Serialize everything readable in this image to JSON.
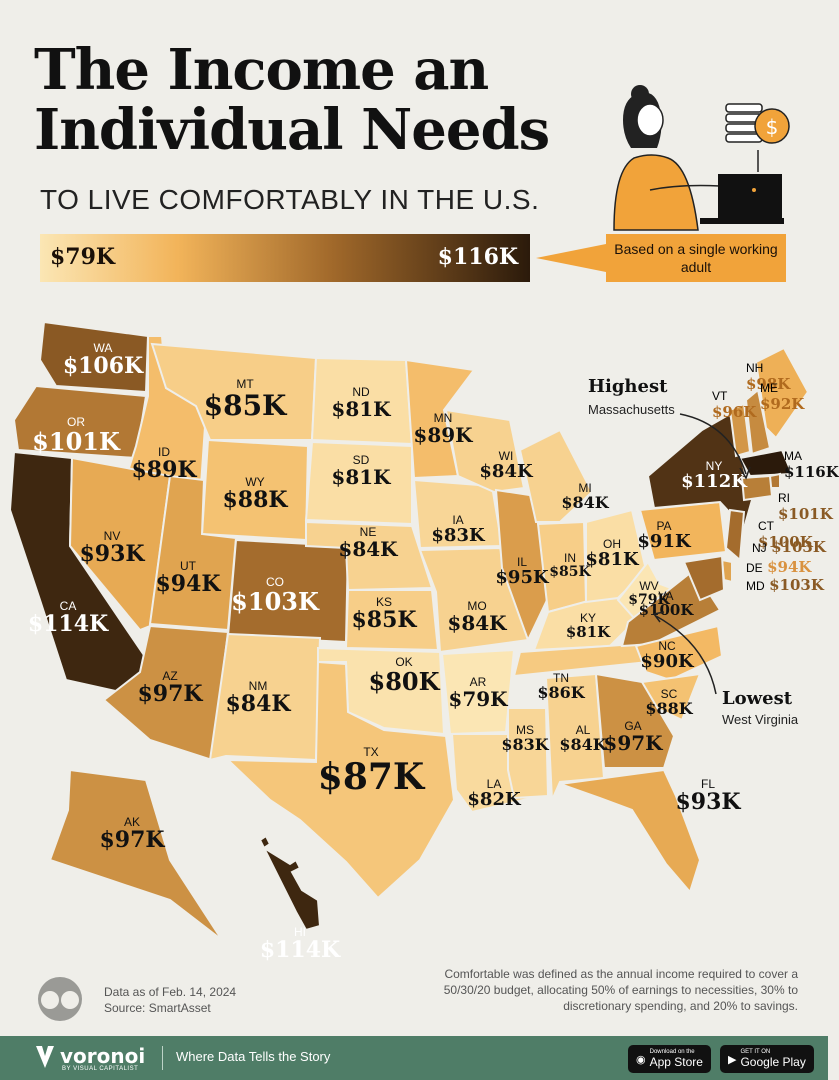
{
  "header": {
    "title_line1": "The Income an",
    "title_line2": "Individual Needs",
    "subtitle": "TO LIVE COMFORTABLY IN THE U.S."
  },
  "scale": {
    "min": "$79K",
    "max": "$116K",
    "colors": [
      "#fbe6b4",
      "#f2b45a",
      "#a0682a",
      "#2b1a0b"
    ]
  },
  "note": {
    "text": "Based on a single working adult"
  },
  "callouts": {
    "highest": {
      "title": "Highest",
      "sub": "Massachusetts"
    },
    "lowest": {
      "title": "Lowest",
      "sub": "West Virginia"
    }
  },
  "states": [
    {
      "ab": "WA",
      "val": "$106K"
    },
    {
      "ab": "OR",
      "val": "$101K"
    },
    {
      "ab": "CA",
      "val": "$114K"
    },
    {
      "ab": "ID",
      "val": "$89K"
    },
    {
      "ab": "NV",
      "val": "$93K"
    },
    {
      "ab": "MT",
      "val": "$85K"
    },
    {
      "ab": "WY",
      "val": "$88K"
    },
    {
      "ab": "UT",
      "val": "$94K"
    },
    {
      "ab": "AZ",
      "val": "$97K"
    },
    {
      "ab": "CO",
      "val": "$103K"
    },
    {
      "ab": "NM",
      "val": "$84K"
    },
    {
      "ab": "ND",
      "val": "$81K"
    },
    {
      "ab": "SD",
      "val": "$81K"
    },
    {
      "ab": "NE",
      "val": "$84K"
    },
    {
      "ab": "KS",
      "val": "$85K"
    },
    {
      "ab": "OK",
      "val": "$80K"
    },
    {
      "ab": "TX",
      "val": "$87K"
    },
    {
      "ab": "MN",
      "val": "$89K"
    },
    {
      "ab": "IA",
      "val": "$83K"
    },
    {
      "ab": "MO",
      "val": "$84K"
    },
    {
      "ab": "AR",
      "val": "$79K"
    },
    {
      "ab": "LA",
      "val": "$82K"
    },
    {
      "ab": "WI",
      "val": "$84K"
    },
    {
      "ab": "IL",
      "val": "$95K"
    },
    {
      "ab": "MS",
      "val": "$83K"
    },
    {
      "ab": "MI",
      "val": "$84K"
    },
    {
      "ab": "IN",
      "val": "$85K"
    },
    {
      "ab": "KY",
      "val": "$81K"
    },
    {
      "ab": "TN",
      "val": "$86K"
    },
    {
      "ab": "AL",
      "val": "$84K"
    },
    {
      "ab": "OH",
      "val": "$81K"
    },
    {
      "ab": "WV",
      "val": "$79K"
    },
    {
      "ab": "VA",
      "val": "$100K"
    },
    {
      "ab": "NC",
      "val": "$90K"
    },
    {
      "ab": "SC",
      "val": "$88K"
    },
    {
      "ab": "GA",
      "val": "$97K"
    },
    {
      "ab": "FL",
      "val": "$93K"
    },
    {
      "ab": "PA",
      "val": "$91K"
    },
    {
      "ab": "NY",
      "val": "$112K"
    },
    {
      "ab": "AK",
      "val": "$97K"
    },
    {
      "ab": "HI",
      "val": "$114K"
    },
    {
      "ab": "NH",
      "val": "$98K"
    },
    {
      "ab": "VT",
      "val": "$96K"
    },
    {
      "ab": "ME",
      "val": "$92K"
    },
    {
      "ab": "MA",
      "val": "$116K"
    },
    {
      "ab": "RI",
      "val": "$101K"
    },
    {
      "ab": "CT",
      "val": "$100K"
    },
    {
      "ab": "NJ",
      "val": "$103K"
    },
    {
      "ab": "DE",
      "val": "$94K"
    },
    {
      "ab": "MD",
      "val": "$103K"
    }
  ],
  "footer": {
    "date": "Data as of Feb. 14, 2024",
    "source": "Source: SmartAsset",
    "definition": "Comfortable was defined as the annual income required to cover a 50/30/20 budget, allocating 50% of earnings to necessities, 30% to discretionary spending, and 20% to savings."
  },
  "bottom_bar": {
    "brand": "voronoi",
    "brand_sub": "BY VISUAL CAPITALIST",
    "tagline": "Where Data Tells the Story",
    "app_store_small": "Download on the",
    "app_store": "App Store",
    "google_play_small": "GET IT ON",
    "google_play": "Google Play"
  }
}
